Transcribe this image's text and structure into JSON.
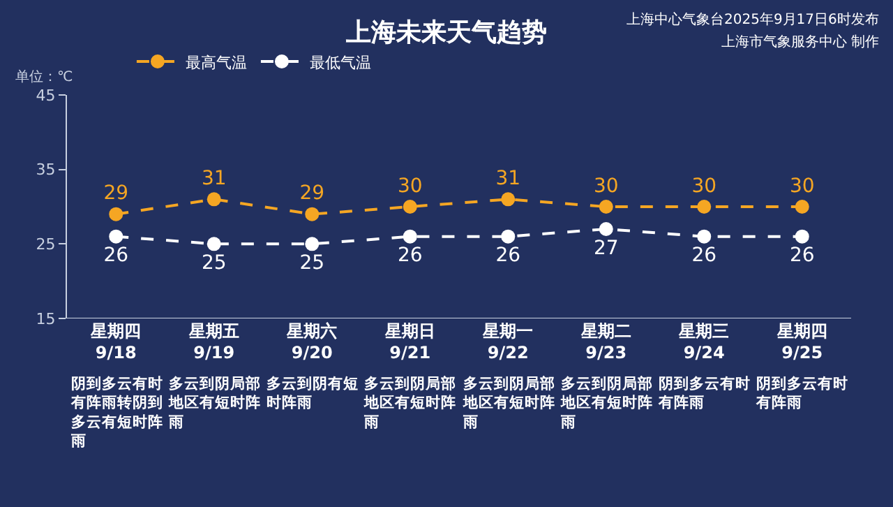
{
  "chart_data": {
    "type": "line",
    "title": "上海未来天气趋势",
    "ylabel": "单位：℃",
    "categories": [
      "星期四\n9/18",
      "星期五\n9/19",
      "星期六\n9/20",
      "星期日\n9/21",
      "星期一\n9/22",
      "星期二\n9/23",
      "星期三\n9/24",
      "星期四\n9/25"
    ],
    "series": [
      {
        "name": "最高气温",
        "color": "#f5a623",
        "values": [
          29,
          31,
          29,
          30,
          31,
          30,
          30,
          30
        ]
      },
      {
        "name": "最低气温",
        "color": "#ffffff",
        "values": [
          26,
          25,
          25,
          26,
          26,
          27,
          26,
          26
        ]
      }
    ],
    "ylim": [
      15,
      45
    ],
    "yticks": [
      15,
      25,
      35,
      45
    ],
    "grid": false,
    "legend": "top left",
    "marker": "circle",
    "line_style": "dashed",
    "data_labels": true,
    "annotations": [
      "上海中心气象台2025年9月17日6时发布",
      "上海市气象服务中心 制作",
      "阴到多云有时有阵雨转阴到多云有短时阵雨",
      "多云到阴局部地区有短时阵雨",
      "多云到阴有短时阵雨",
      "多云到阴局部地区有短时阵雨",
      "多云到阴局部地区有短时阵雨",
      "多云到阴局部地区有短时阵雨",
      "阴到多云有时有阵雨",
      "阴到多云有时有阵雨"
    ]
  }
}
